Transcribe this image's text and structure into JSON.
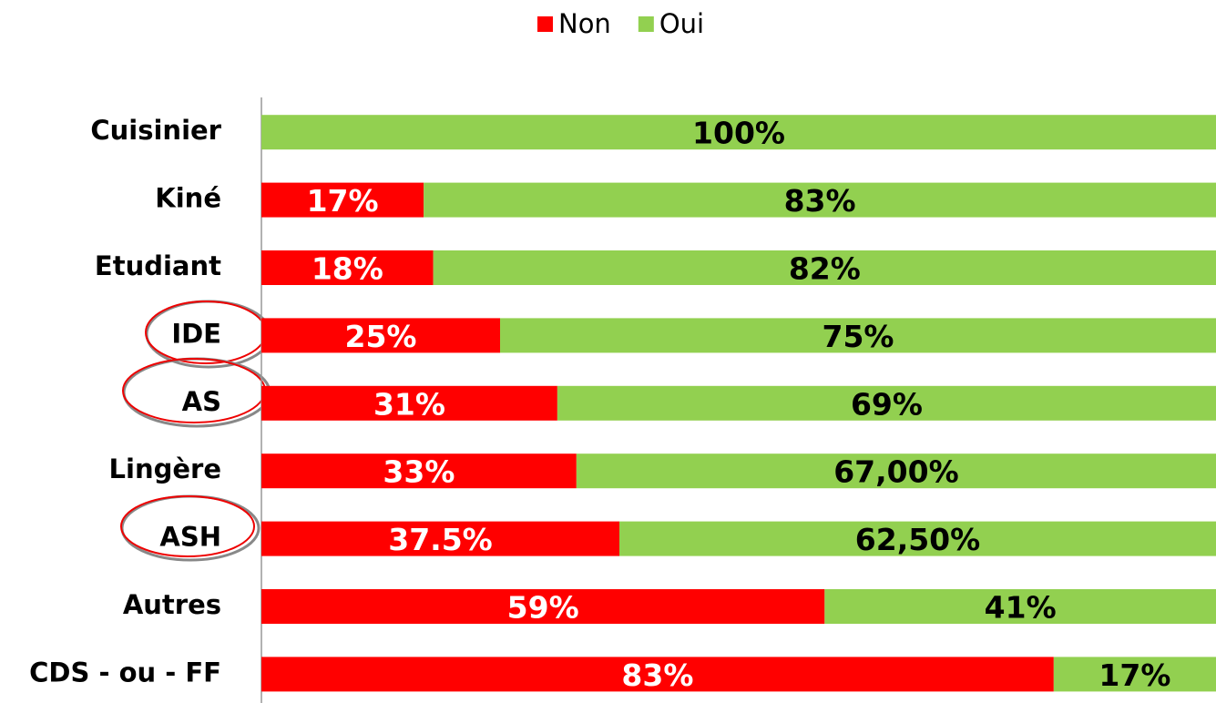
{
  "chart_data": {
    "type": "stacked_bar_horizontal",
    "categories": [
      "Cuisinier",
      "Kiné",
      "Etudiant",
      "IDE",
      "AS",
      "Lingère",
      "ASH",
      "Autres",
      "CDS - ou - FF"
    ],
    "series": [
      {
        "name": "Non",
        "color": "#ff0000",
        "values": [
          0,
          17,
          18,
          25,
          31,
          33,
          37.5,
          59,
          83
        ],
        "value_labels": [
          null,
          "17%",
          "18%",
          "25%",
          "31%",
          "33%",
          "37.5%",
          "59%",
          "83%"
        ]
      },
      {
        "name": "Oui",
        "color": "#92d050",
        "values": [
          100,
          83,
          82,
          75,
          69,
          67,
          62.5,
          41,
          17
        ],
        "value_labels": [
          "100%",
          "83%",
          "82%",
          "75%",
          "69%",
          "67,00%",
          "62,50%",
          "41%",
          "17%"
        ]
      }
    ],
    "xlim": [
      0,
      100
    ],
    "legend": "top"
  }
}
